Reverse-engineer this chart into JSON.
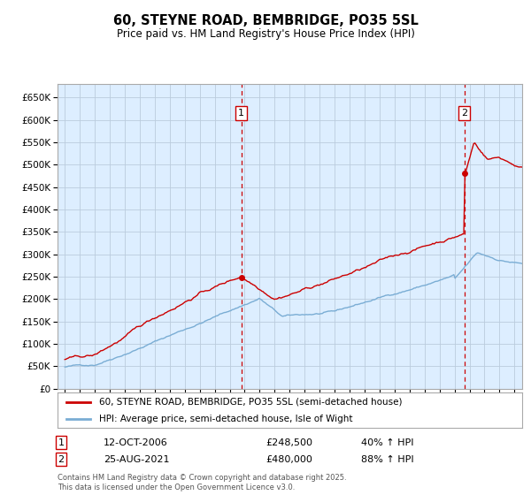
{
  "title": "60, STEYNE ROAD, BEMBRIDGE, PO35 5SL",
  "subtitle": "Price paid vs. HM Land Registry's House Price Index (HPI)",
  "property_label": "60, STEYNE ROAD, BEMBRIDGE, PO35 5SL (semi-detached house)",
  "hpi_label": "HPI: Average price, semi-detached house, Isle of Wight",
  "property_color": "#cc0000",
  "hpi_color": "#7aadd4",
  "sale1_date": "12-OCT-2006",
  "sale1_price": 248500,
  "sale1_pct": "40% ↑ HPI",
  "sale1_label": "1",
  "sale1_x": 2006.78,
  "sale2_date": "25-AUG-2021",
  "sale2_price": 480000,
  "sale2_pct": "88% ↑ HPI",
  "sale2_label": "2",
  "sale2_x": 2021.65,
  "ylim_min": 0,
  "ylim_max": 680000,
  "xlim_min": 1994.5,
  "xlim_max": 2025.5,
  "yticks": [
    0,
    50000,
    100000,
    150000,
    200000,
    250000,
    300000,
    350000,
    400000,
    450000,
    500000,
    550000,
    600000,
    650000
  ],
  "ytick_labels": [
    "£0",
    "£50K",
    "£100K",
    "£150K",
    "£200K",
    "£250K",
    "£300K",
    "£350K",
    "£400K",
    "£450K",
    "£500K",
    "£550K",
    "£600K",
    "£650K"
  ],
  "xticks": [
    1995,
    1996,
    1997,
    1998,
    1999,
    2000,
    2001,
    2002,
    2003,
    2004,
    2005,
    2006,
    2007,
    2008,
    2009,
    2010,
    2011,
    2012,
    2013,
    2014,
    2015,
    2016,
    2017,
    2018,
    2019,
    2020,
    2021,
    2022,
    2023,
    2024,
    2025
  ],
  "footer": "Contains HM Land Registry data © Crown copyright and database right 2025.\nThis data is licensed under the Open Government Licence v3.0.",
  "background_color": "#ffffff",
  "chart_bg_color": "#ddeeff",
  "grid_color": "#bbccdd"
}
